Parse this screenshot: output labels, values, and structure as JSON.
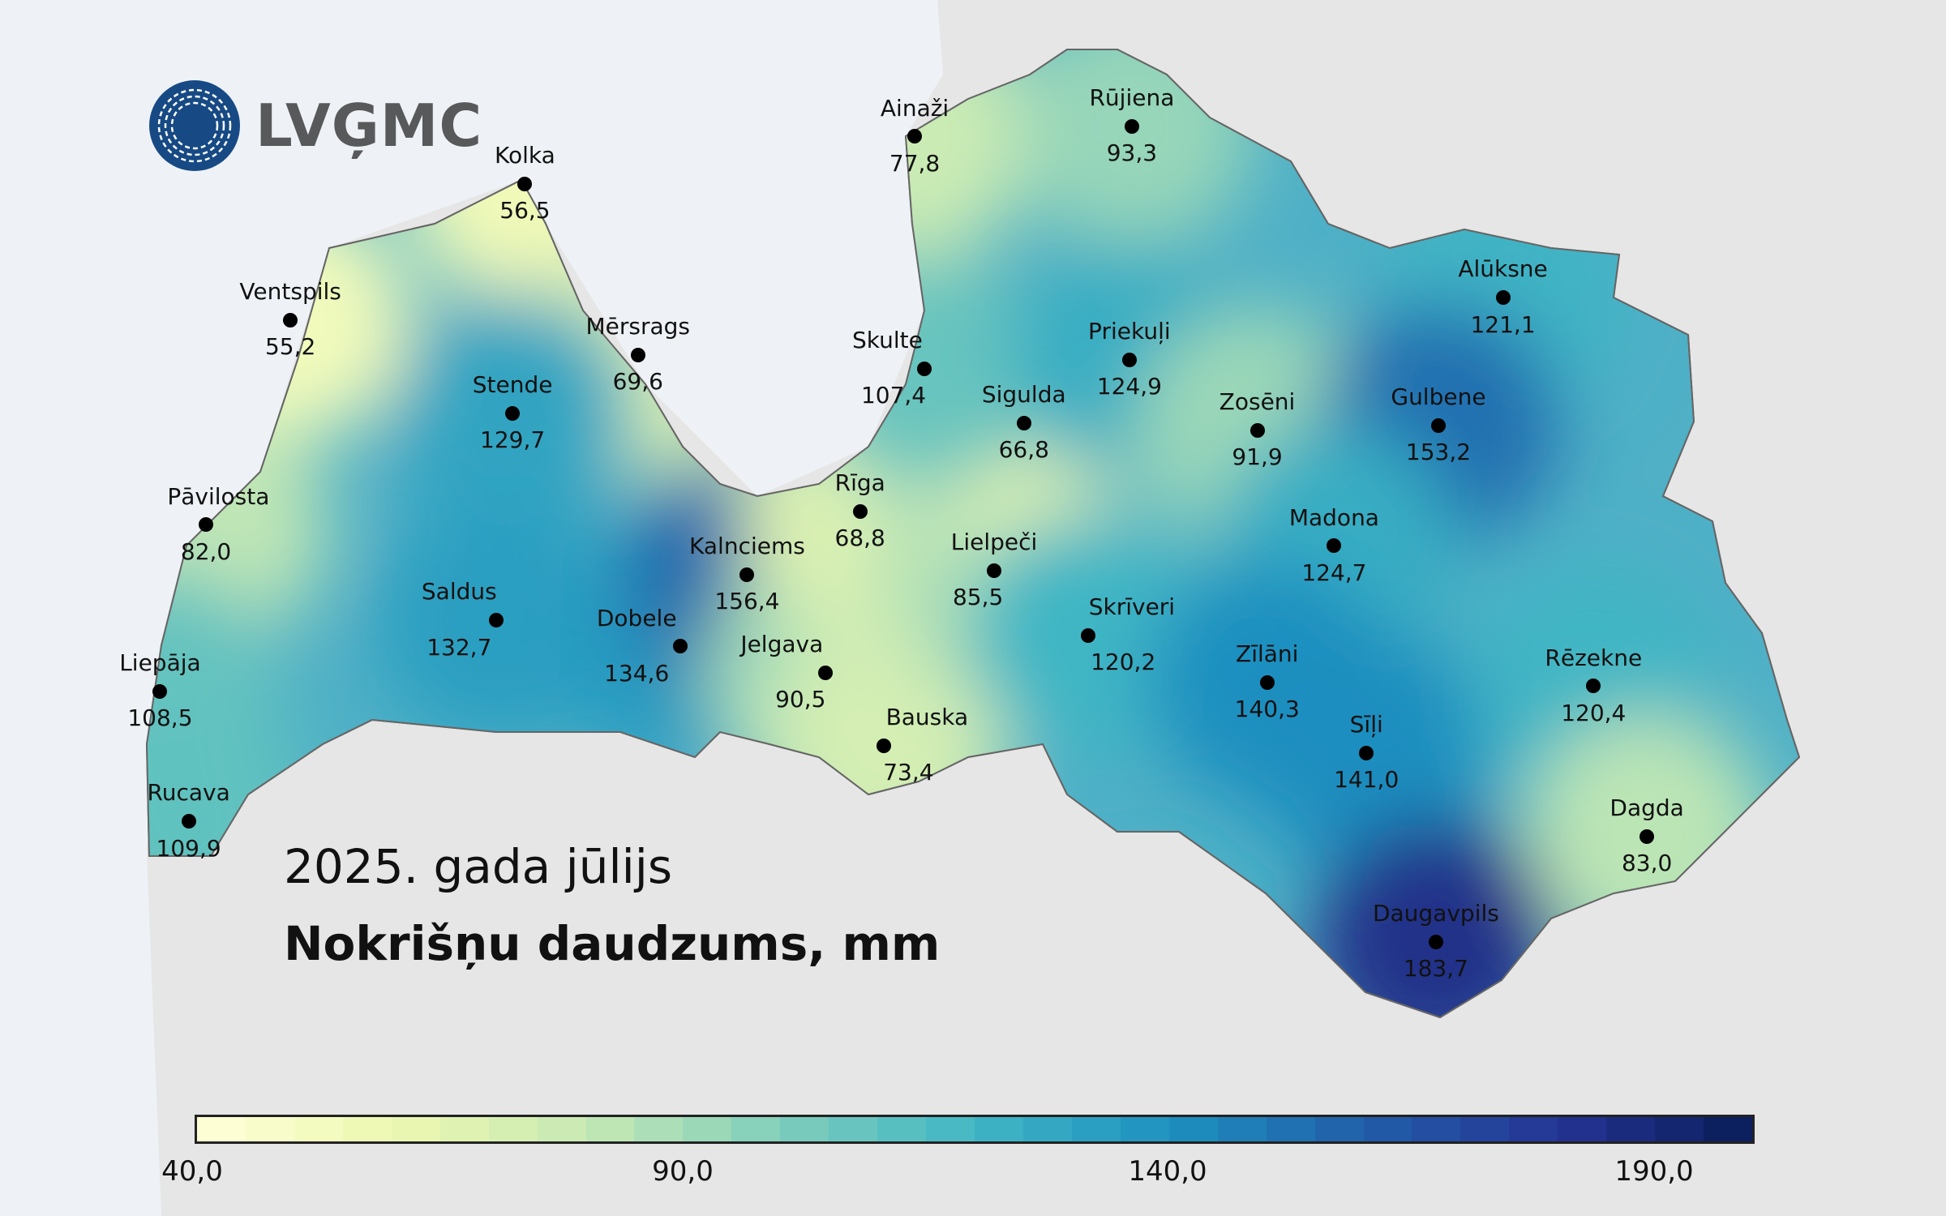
{
  "logo": {
    "text": "LVĢMC",
    "color": "#174a84"
  },
  "title": {
    "period": "2025. gada jūlijs",
    "variable": "Nokrišņu daudzums, mm"
  },
  "legend": {
    "min": 40,
    "max": 200,
    "step": 5,
    "ticks": [
      "40,0",
      "90,0",
      "140,0",
      "190,0"
    ],
    "colors": [
      "#ffffd9",
      "#edf8b1",
      "#c7e9b4",
      "#7fcdbb",
      "#41b6c4",
      "#1d91c0",
      "#225ea8",
      "#253494",
      "#081d58"
    ]
  },
  "stations": [
    {
      "name": "Kolka",
      "value": "56,5"
    },
    {
      "name": "Ventspils",
      "value": "55,2"
    },
    {
      "name": "Mērsrags",
      "value": "69,6"
    },
    {
      "name": "Stende",
      "value": "129,7"
    },
    {
      "name": "Pāvilosta",
      "value": "82,0"
    },
    {
      "name": "Saldus",
      "value": "132,7"
    },
    {
      "name": "Liepāja",
      "value": "108,5"
    },
    {
      "name": "Rucava",
      "value": "109,9"
    },
    {
      "name": "Dobele",
      "value": "134,6"
    },
    {
      "name": "Kalnciems",
      "value": "156,4"
    },
    {
      "name": "Jelgava",
      "value": "90,5"
    },
    {
      "name": "Rīga",
      "value": "68,8"
    },
    {
      "name": "Bauska",
      "value": "73,4"
    },
    {
      "name": "Lielpeči",
      "value": "85,5"
    },
    {
      "name": "Sigulda",
      "value": "66,8"
    },
    {
      "name": "Skulte",
      "value": "107,4"
    },
    {
      "name": "Ainaži",
      "value": "77,8"
    },
    {
      "name": "Rūjiena",
      "value": "93,3"
    },
    {
      "name": "Priekuļi",
      "value": "124,9"
    },
    {
      "name": "Zosēni",
      "value": "91,9"
    },
    {
      "name": "Alūksne",
      "value": "121,1"
    },
    {
      "name": "Gulbene",
      "value": "153,2"
    },
    {
      "name": "Madona",
      "value": "124,7"
    },
    {
      "name": "Skrīveri",
      "value": "120,2"
    },
    {
      "name": "Zīlāni",
      "value": "140,3"
    },
    {
      "name": "Sīļi",
      "value": "141,0"
    },
    {
      "name": "Rēzekne",
      "value": "120,4"
    },
    {
      "name": "Dagda",
      "value": "83,0"
    },
    {
      "name": "Daugavpils",
      "value": "183,7"
    }
  ]
}
